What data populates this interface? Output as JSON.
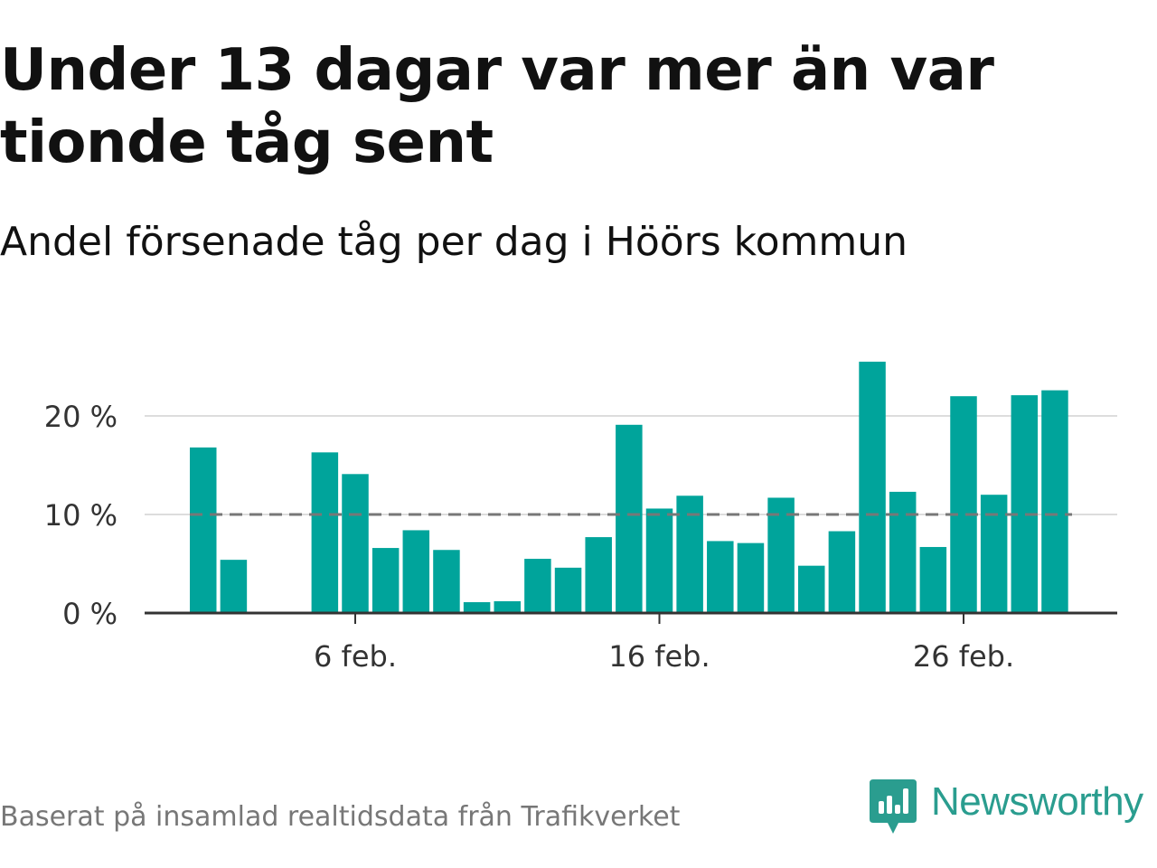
{
  "title": "Under 13 dagar var mer än var tionde tåg sent",
  "subtitle": "Andel försenade tåg per dag i Höörs kommun",
  "footer": "Baserat på insamlad realtidsdata från Trafikverket",
  "brand": {
    "name": "Newsworthy",
    "icon": "newsworthy-logo-icon",
    "color": "#2a9d8f"
  },
  "colors": {
    "bar": "#00a49b",
    "reference_line": "#777777",
    "grid": "#dddddd",
    "axis": "#333333",
    "text": "#111111"
  },
  "chart_data": {
    "type": "bar",
    "title": "Under 13 dagar var mer än var tionde tåg sent",
    "subtitle": "Andel försenade tåg per dag i Höörs kommun",
    "xlabel": "",
    "ylabel": "",
    "categories": [
      "1 feb.",
      "2 feb.",
      "3 feb.",
      "4 feb.",
      "5 feb.",
      "6 feb.",
      "7 feb.",
      "8 feb.",
      "9 feb.",
      "10 feb.",
      "11 feb.",
      "12 feb.",
      "13 feb.",
      "14 feb.",
      "15 feb.",
      "16 feb.",
      "17 feb.",
      "18 feb.",
      "19 feb.",
      "20 feb.",
      "21 feb.",
      "22 feb.",
      "23 feb.",
      "24 feb.",
      "25 feb.",
      "26 feb.",
      "27 feb.",
      "28 feb.",
      "29 feb."
    ],
    "values": [
      16.8,
      5.4,
      null,
      null,
      16.3,
      14.1,
      6.6,
      8.4,
      6.4,
      1.1,
      1.2,
      5.5,
      4.6,
      7.7,
      19.1,
      10.6,
      11.9,
      7.3,
      7.1,
      11.7,
      4.8,
      8.3,
      25.5,
      12.3,
      6.7,
      22.0,
      12.0,
      22.1,
      22.6
    ],
    "ylim": [
      0,
      26
    ],
    "yticks": [
      0,
      10,
      20
    ],
    "ytick_labels": [
      "0 %",
      "10 %",
      "20 %"
    ],
    "xticks": [
      "6 feb.",
      "16 feb.",
      "26 feb."
    ],
    "xtick_index": [
      5,
      15,
      25
    ],
    "reference_line": 10,
    "grid": true,
    "legend": "none"
  }
}
